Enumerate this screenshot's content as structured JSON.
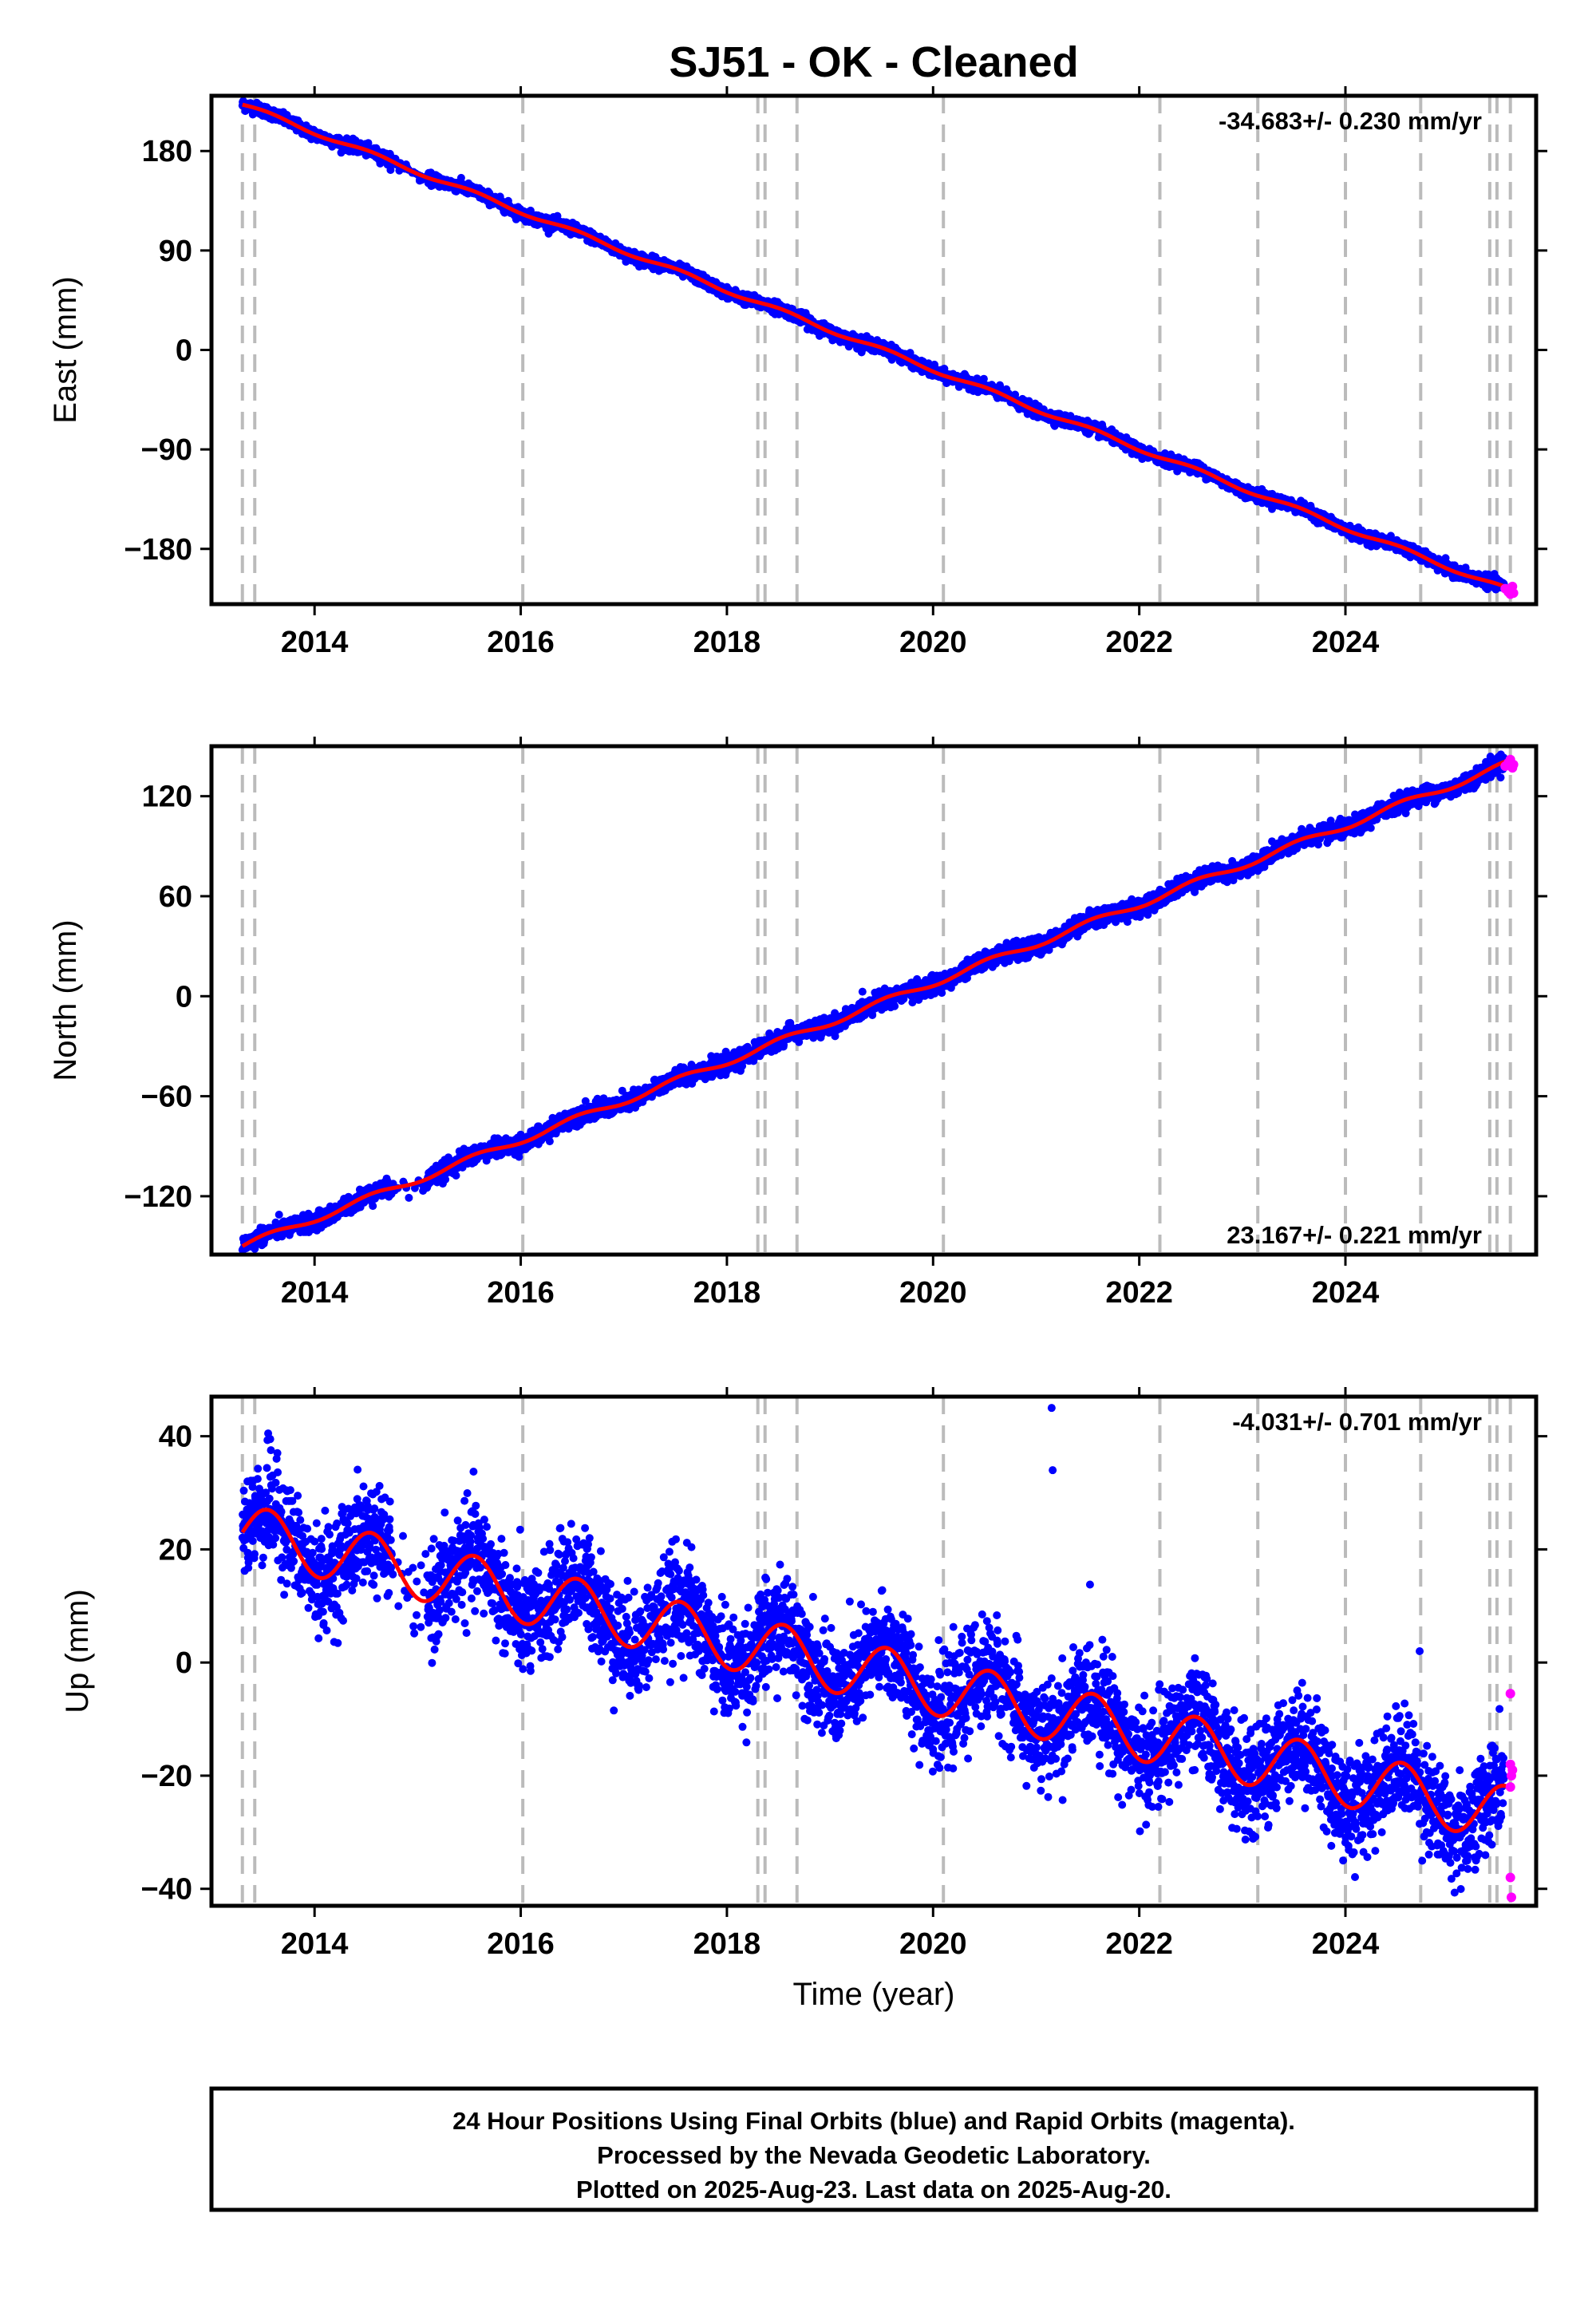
{
  "chart_data": {
    "title": "SJ51  - OK - Cleaned",
    "type": "scatter",
    "x_label": "Time (year)",
    "xlim": [
      2013.0,
      2025.85
    ],
    "x_ticks": [
      2014,
      2016,
      2018,
      2020,
      2022,
      2024
    ],
    "x_tick_labels": [
      "2014",
      "2016",
      "2018",
      "2020",
      "2022",
      "2024"
    ],
    "event_lines": [
      2013.3,
      2013.42,
      2016.02,
      2018.3,
      2018.37,
      2018.68,
      2020.1,
      2022.2,
      2023.15,
      2024.0,
      2024.73,
      2025.4,
      2025.47,
      2025.6
    ],
    "colors": {
      "final_orbits": "#0000ff",
      "rapid_orbits": "#ff00ff",
      "model": "#ff0000",
      "event_lines": "#bbbbbb",
      "grid": "none"
    },
    "panels": [
      {
        "name": "east",
        "ylabel": "East (mm)",
        "ylim": [
          -230,
          230
        ],
        "y_ticks": [
          180,
          90,
          0,
          -90,
          -180
        ],
        "y_tick_labels": [
          "180",
          "90",
          "0",
          "−90",
          "−180"
        ],
        "rate": "-34.683+/- 0.230 mm/yr",
        "rate_position": "top-right",
        "trend": {
          "t0": 2013.3,
          "y0": 222,
          "t1": 2025.6,
          "y1": -218
        },
        "seasonal_amplitude": 2,
        "scatter_mm": 2.5,
        "rapid_points": [
          [
            2025.55,
            -216
          ],
          [
            2025.58,
            -219
          ],
          [
            2025.6,
            -221
          ],
          [
            2025.62,
            -214
          ],
          [
            2025.63,
            -220
          ]
        ]
      },
      {
        "name": "north",
        "ylabel": "North (mm)",
        "ylim": [
          -155,
          150
        ],
        "y_ticks": [
          120,
          60,
          0,
          -60,
          -120
        ],
        "y_tick_labels": [
          "120",
          "60",
          "0",
          "−60",
          "−120"
        ],
        "rate": "23.167+/- 0.221 mm/yr",
        "rate_position": "bottom-right",
        "trend": {
          "t0": 2013.3,
          "y0": -150,
          "t1": 2025.6,
          "y1": 140
        },
        "seasonal_amplitude": 2,
        "scatter_mm": 2.5,
        "rapid_points": [
          [
            2025.55,
            138
          ],
          [
            2025.58,
            140
          ],
          [
            2025.6,
            142
          ],
          [
            2025.62,
            137
          ],
          [
            2025.63,
            139
          ]
        ]
      },
      {
        "name": "up",
        "ylabel": "Up (mm)",
        "ylim": [
          -43,
          47
        ],
        "y_ticks": [
          40,
          20,
          0,
          -20,
          -40
        ],
        "y_tick_labels": [
          "40",
          "20",
          "0",
          "−20",
          "−40"
        ],
        "rate": "-4.031+/- 0.701 mm/yr",
        "rate_position": "top-right",
        "trend": {
          "t0": 2013.3,
          "y0": 23,
          "t1": 2025.6,
          "y1": -27
        },
        "seasonal_amplitude": 5,
        "scatter_mm": 4.5,
        "outliers": [
          [
            2013.55,
            40.5
          ],
          [
            2013.57,
            39.5
          ],
          [
            2021.15,
            45
          ],
          [
            2021.16,
            34
          ],
          [
            2024.72,
            2
          ]
        ],
        "rapid_points": [
          [
            2025.6,
            -5.5
          ],
          [
            2025.6,
            -18
          ],
          [
            2025.61,
            -20
          ],
          [
            2025.6,
            -22
          ],
          [
            2025.62,
            -19
          ],
          [
            2025.6,
            -38
          ],
          [
            2025.61,
            -41.5
          ]
        ]
      }
    ]
  },
  "footer": {
    "line1": "24 Hour Positions Using Final Orbits (blue) and Rapid Orbits (magenta).",
    "line2": "Processed by the Nevada Geodetic Laboratory.",
    "line3": "Plotted on 2025-Aug-23. Last data on 2025-Aug-20."
  }
}
